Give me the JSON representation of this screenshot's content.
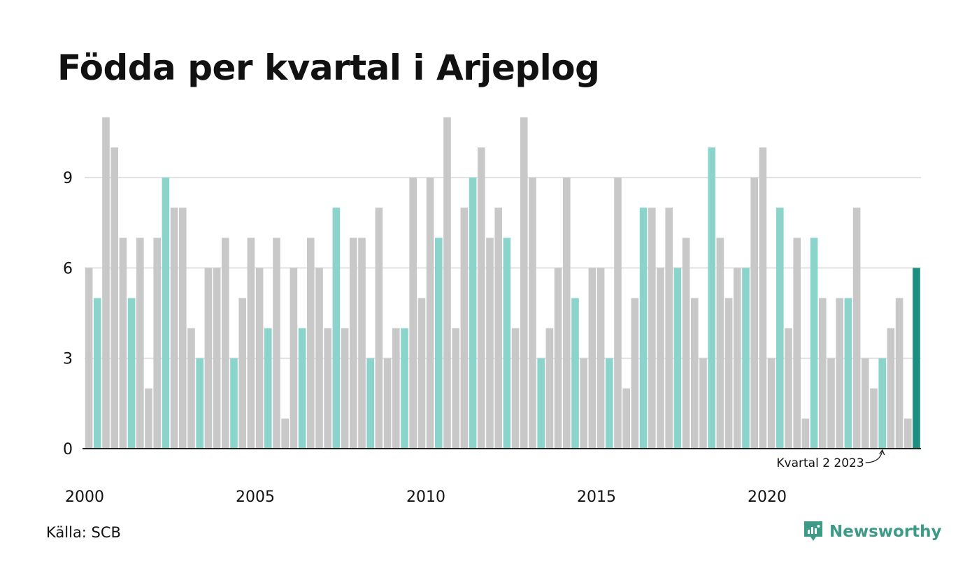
{
  "title": "Födda per kvartal i Arjeplog",
  "source": "Källa: SCB",
  "brand": {
    "name": "Newsworthy",
    "icon": "newsworthy-logo-icon",
    "color": "#3d9a86"
  },
  "annotation": "Kvartal 2 2023",
  "colors": {
    "highlight_quarter": "#8ad4cc",
    "other": "#c8c8c8",
    "latest": "#1c8f80",
    "grid": "#e0e0e0",
    "axis": "#222222"
  },
  "chart_data": {
    "type": "bar",
    "highlighted_quarter": 2,
    "x_tick_labels": [
      "2000",
      "2005",
      "2010",
      "2015",
      "2020"
    ],
    "y_ticks": [
      0,
      3,
      6,
      9
    ],
    "ylim": [
      0,
      11
    ],
    "grid": true,
    "years": [
      2000,
      2001,
      2002,
      2003,
      2004,
      2005,
      2006,
      2007,
      2008,
      2009,
      2010,
      2011,
      2012,
      2013,
      2014,
      2015,
      2016,
      2017,
      2018,
      2019,
      2020,
      2021,
      2022,
      2023
    ],
    "quarters_per_year": 4,
    "values": [
      6,
      5,
      11,
      10,
      7,
      5,
      7,
      2,
      7,
      9,
      8,
      8,
      4,
      3,
      6,
      6,
      7,
      3,
      5,
      7,
      6,
      4,
      7,
      1,
      6,
      4,
      7,
      6,
      4,
      8,
      4,
      7,
      7,
      3,
      8,
      3,
      4,
      4,
      9,
      5,
      9,
      7,
      11,
      4,
      8,
      9,
      10,
      7,
      8,
      7,
      4,
      11,
      9,
      3,
      4,
      6,
      9,
      5,
      3,
      6,
      6,
      3,
      9,
      2,
      5,
      8,
      8,
      6,
      8,
      6,
      7,
      5,
      3,
      10,
      7,
      5,
      6,
      6,
      9,
      10,
      3,
      8,
      4,
      7,
      1,
      7,
      5,
      3,
      5,
      5,
      8,
      3,
      2,
      3,
      4,
      5,
      1,
      6
    ]
  }
}
